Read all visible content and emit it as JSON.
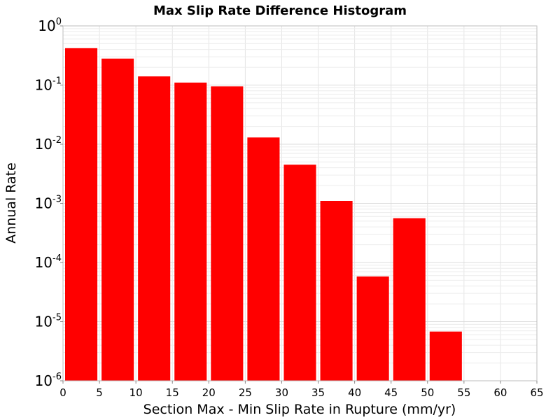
{
  "chart_data": {
    "type": "bar",
    "title": "Max Slip Rate Difference Histogram",
    "xlabel": "Section Max - Min Slip Rate in Rupture (mm/yr)",
    "ylabel": "Annual Rate",
    "y_scale": "log",
    "xlim": [
      0,
      65
    ],
    "ylim": [
      1e-06,
      1
    ],
    "x_ticks": [
      0,
      5,
      10,
      15,
      20,
      25,
      30,
      35,
      40,
      45,
      50,
      55,
      60,
      65
    ],
    "y_ticks": [
      {
        "base": "10",
        "exp": "0",
        "value": 1
      },
      {
        "base": "10",
        "exp": "-1",
        "value": 0.1
      },
      {
        "base": "10",
        "exp": "-2",
        "value": 0.01
      },
      {
        "base": "10",
        "exp": "-3",
        "value": 0.001
      },
      {
        "base": "10",
        "exp": "-4",
        "value": 0.0001
      },
      {
        "base": "10",
        "exp": "-5",
        "value": 1e-05
      },
      {
        "base": "10",
        "exp": "-6",
        "value": 1e-06
      }
    ],
    "bin_width": 5,
    "bins": [
      {
        "x_start": 0,
        "x_end": 5,
        "value": 0.42
      },
      {
        "x_start": 5,
        "x_end": 10,
        "value": 0.28
      },
      {
        "x_start": 10,
        "x_end": 15,
        "value": 0.14
      },
      {
        "x_start": 15,
        "x_end": 20,
        "value": 0.11
      },
      {
        "x_start": 20,
        "x_end": 25,
        "value": 0.095
      },
      {
        "x_start": 25,
        "x_end": 30,
        "value": 0.013
      },
      {
        "x_start": 30,
        "x_end": 35,
        "value": 0.0045
      },
      {
        "x_start": 35,
        "x_end": 40,
        "value": 0.0011
      },
      {
        "x_start": 40,
        "x_end": 45,
        "value": 5.8e-05
      },
      {
        "x_start": 45,
        "x_end": 50,
        "value": 0.00056
      },
      {
        "x_start": 50,
        "x_end": 55,
        "value": 6.8e-06
      }
    ],
    "bar_color": "#ff0000",
    "grid": true,
    "legend": false
  }
}
